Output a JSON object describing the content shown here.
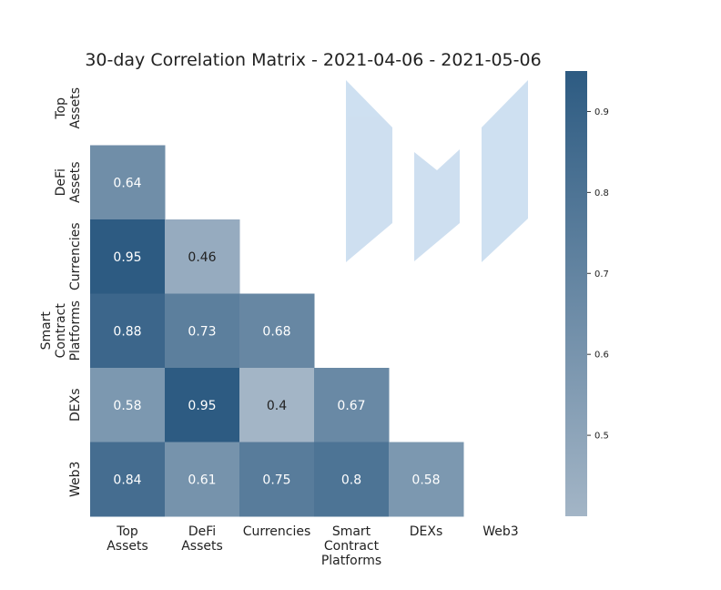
{
  "chart_data": {
    "type": "heatmap",
    "title": "30-day Correlation Matrix - 2021-04-06 - 2021-05-06",
    "x_tick_labels": [
      [
        "Top",
        "Assets"
      ],
      [
        "DeFi",
        "Assets"
      ],
      [
        "Currencies"
      ],
      [
        "Smart",
        "Contract",
        "Platforms"
      ],
      [
        "DEXs"
      ],
      [
        "Web3"
      ]
    ],
    "y_tick_labels": [
      [
        "Top",
        "Assets"
      ],
      [
        "DeFi",
        "Assets"
      ],
      [
        "Currencies"
      ],
      [
        "Smart",
        "Contract",
        "Platforms"
      ],
      [
        "DEXs"
      ],
      [
        "Web3"
      ]
    ],
    "mask": "upper-triangle-including-diagonal",
    "cells": [
      {
        "row": 1,
        "col": 0,
        "value": 0.64
      },
      {
        "row": 2,
        "col": 0,
        "value": 0.95
      },
      {
        "row": 2,
        "col": 1,
        "value": 0.46
      },
      {
        "row": 3,
        "col": 0,
        "value": 0.88
      },
      {
        "row": 3,
        "col": 1,
        "value": 0.73
      },
      {
        "row": 3,
        "col": 2,
        "value": 0.68
      },
      {
        "row": 4,
        "col": 0,
        "value": 0.58
      },
      {
        "row": 4,
        "col": 1,
        "value": 0.95
      },
      {
        "row": 4,
        "col": 2,
        "value": 0.4
      },
      {
        "row": 4,
        "col": 3,
        "value": 0.67
      },
      {
        "row": 5,
        "col": 0,
        "value": 0.84
      },
      {
        "row": 5,
        "col": 1,
        "value": 0.61
      },
      {
        "row": 5,
        "col": 2,
        "value": 0.75
      },
      {
        "row": 5,
        "col": 3,
        "value": 0.8
      },
      {
        "row": 5,
        "col": 4,
        "value": 0.58
      }
    ],
    "cell_value_labels": [
      "0.64",
      "0.95",
      "0.46",
      "0.88",
      "0.73",
      "0.68",
      "0.58",
      "0.95",
      "0.4",
      "0.67",
      "0.84",
      "0.61",
      "0.75",
      "0.8",
      "0.58"
    ],
    "colorbar": {
      "vmin": 0.4,
      "vmax": 0.95,
      "ticks": [
        0.5,
        0.6,
        0.7,
        0.8,
        0.9
      ],
      "tick_labels": [
        "0.5",
        "0.6",
        "0.7",
        "0.8",
        "0.9"
      ],
      "color_low": "#a3b5c6",
      "color_high": "#2d5b82"
    },
    "text_color_light": "#ffffff",
    "text_color_dark": "#222222",
    "grid": false
  },
  "watermark": {
    "color": "#c6daee"
  }
}
